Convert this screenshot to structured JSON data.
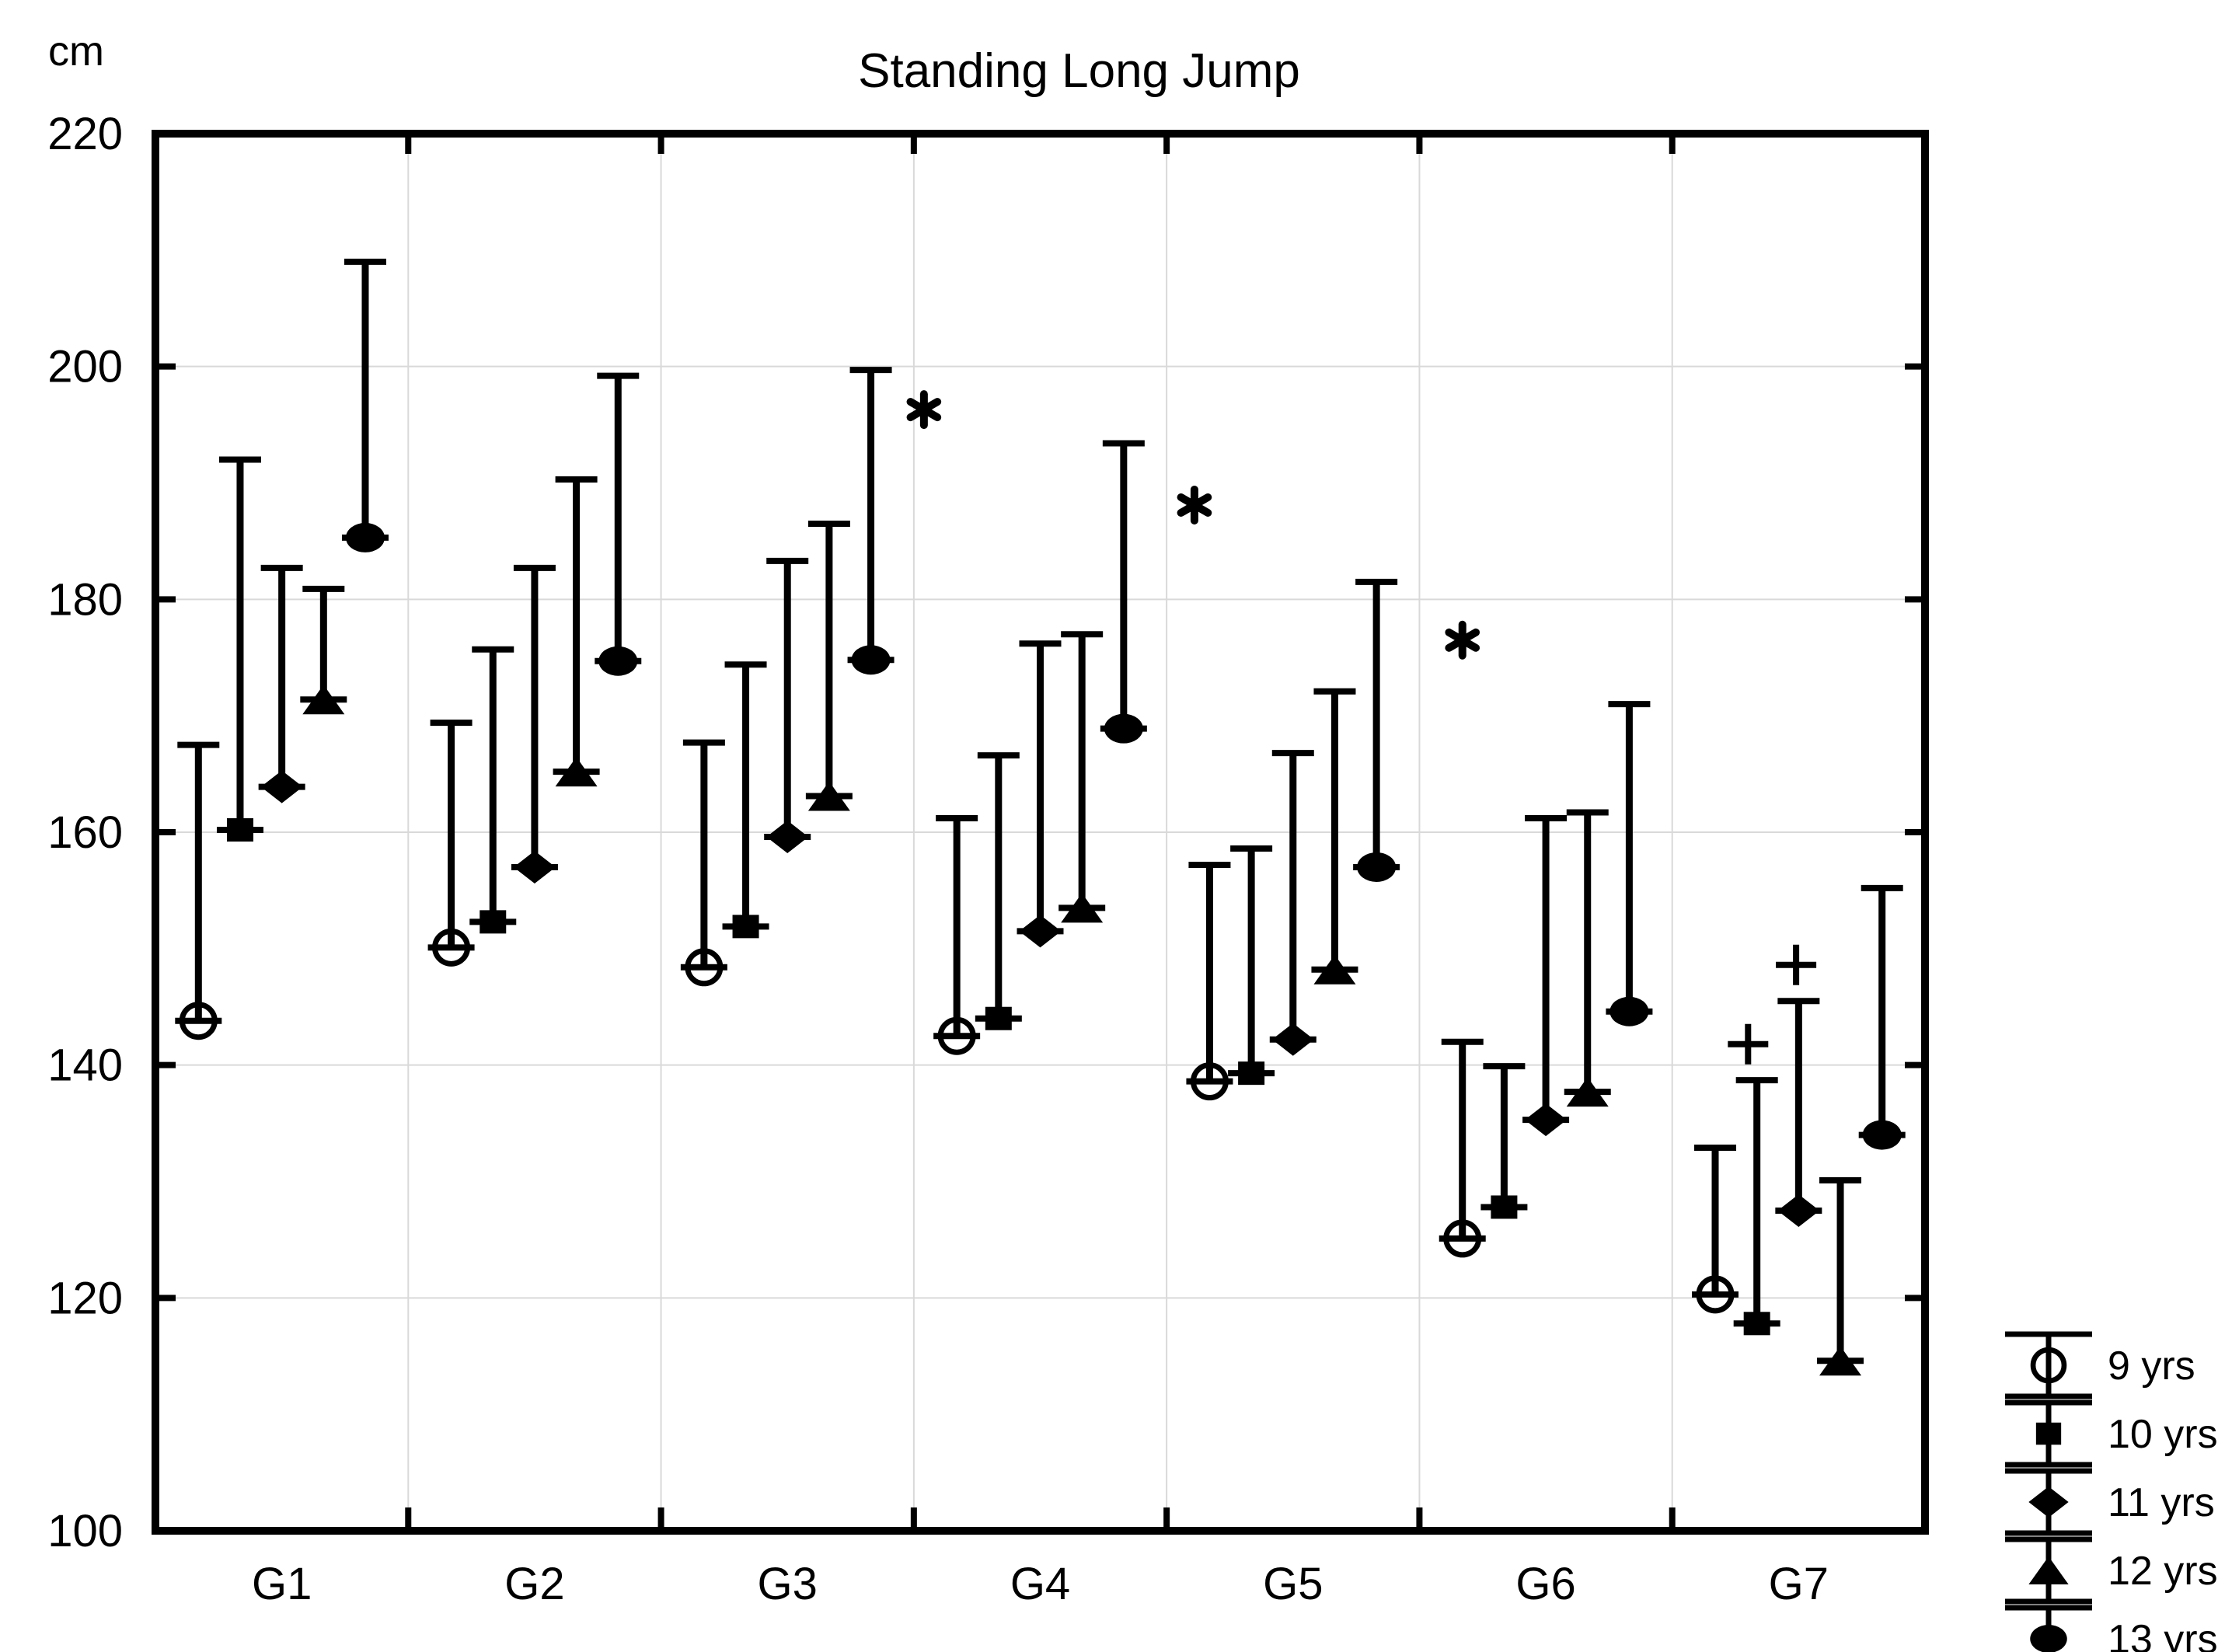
{
  "title": "Standing Long Jump",
  "y_axis": {
    "unit_label": "cm",
    "min": 100,
    "max": 220,
    "tick_step": 20,
    "tick_labels": [
      "100",
      "120",
      "140",
      "160",
      "180",
      "200",
      "220"
    ]
  },
  "x_axis": {
    "group_labels": [
      "G1",
      "G2",
      "G3",
      "G4",
      "G5",
      "G6",
      "G7"
    ]
  },
  "colors": {
    "ink": "#000000",
    "gridline": "#d9d9d9",
    "background": "#ffffff"
  },
  "legend": {
    "entries": [
      {
        "label": "9 yrs",
        "marker": "open-circle"
      },
      {
        "label": "10 yrs",
        "marker": "filled-square"
      },
      {
        "label": "11 yrs",
        "marker": "filled-diamond"
      },
      {
        "label": "12 yrs",
        "marker": "filled-triangle"
      },
      {
        "label": "13 yrs",
        "marker": "filled-ellipse"
      }
    ]
  },
  "chart_data": {
    "type": "interval-plot-mean-with-upper-whisker",
    "title": "Standing Long Jump",
    "ylabel": "cm",
    "ylim": [
      100,
      220
    ],
    "grid": "on",
    "legend_position": "bottom-right-outside",
    "categories": [
      "G1",
      "G2",
      "G3",
      "G4",
      "G5",
      "G6",
      "G7"
    ],
    "series_offsets": [
      0.17,
      0.335,
      0.5,
      0.665,
      0.83
    ],
    "series": [
      {
        "name": "9 yrs",
        "marker": "open-circle",
        "means": [
          143.8,
          150.1,
          148.4,
          142.5,
          138.6,
          125.1,
          120.3
        ],
        "upper": [
          167.5,
          169.4,
          167.7,
          161.2,
          157.2,
          142.0,
          132.9
        ]
      },
      {
        "name": "10 yrs",
        "marker": "filled-square",
        "means": [
          160.2,
          152.3,
          151.9,
          144.0,
          139.3,
          127.8,
          117.8
        ],
        "upper": [
          192.0,
          175.7,
          174.4,
          166.6,
          158.6,
          139.9,
          138.7
        ]
      },
      {
        "name": "11 yrs",
        "marker": "filled-diamond",
        "means": [
          163.9,
          157.0,
          159.6,
          151.5,
          142.2,
          135.3,
          127.5
        ],
        "upper": [
          182.7,
          182.7,
          183.3,
          176.2,
          166.8,
          161.2,
          145.5
        ]
      },
      {
        "name": "12 yrs",
        "marker": "filled-triangle",
        "means": [
          171.4,
          165.2,
          163.1,
          153.5,
          148.2,
          137.7,
          114.6
        ],
        "upper": [
          180.9,
          190.3,
          186.5,
          177.0,
          172.1,
          161.7,
          130.1
        ]
      },
      {
        "name": "13 yrs",
        "marker": "filled-ellipse",
        "means": [
          185.3,
          174.7,
          174.8,
          168.9,
          157.0,
          144.6,
          134.0
        ],
        "upper": [
          209.0,
          199.2,
          199.7,
          193.4,
          181.5,
          171.0,
          155.2
        ]
      }
    ],
    "annotations": [
      {
        "symbol": "*",
        "x_units": 3.04,
        "value": 196.3
      },
      {
        "symbol": "*",
        "x_units": 4.11,
        "value": 188.1
      },
      {
        "symbol": "*",
        "x_units": 5.17,
        "value": 176.5
      },
      {
        "symbol": "+",
        "x_units": 6.3,
        "value": 141.8
      },
      {
        "symbol": "+",
        "x_units": 6.49,
        "value": 148.6
      }
    ]
  }
}
